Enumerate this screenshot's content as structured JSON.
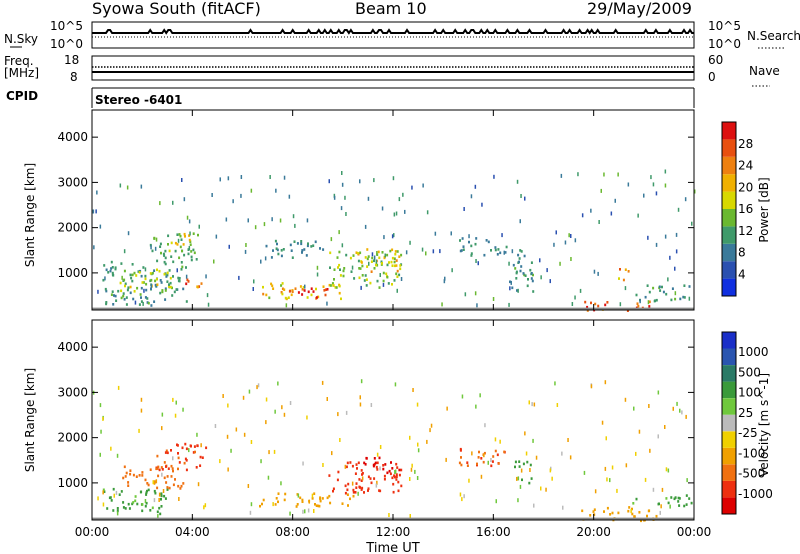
{
  "header": {
    "title": "Syowa South (fitACF)",
    "beam": "Beam 10",
    "date": "29/May/2009"
  },
  "top_panels": {
    "nsky_label": "N.Sky",
    "nsky_ticks": [
      "10^5",
      "10^0"
    ],
    "nsearch_label": "N.Search",
    "nsearch_ticks": [
      "10^5",
      "10^0"
    ],
    "freq_label": "Freq.",
    "freq_unit": "[MHz]",
    "freq_ticks": [
      "18",
      "8"
    ],
    "nave_label": "Nave",
    "nave_ticks": [
      "60",
      "0"
    ],
    "cpid_label": "CPID",
    "cpid_value": "Stereo  -6401"
  },
  "colors": {
    "power_scale": [
      "#1030e0",
      "#2a50b0",
      "#3a7a9a",
      "#3f9a6a",
      "#6ab830",
      "#d8d800",
      "#f0b000",
      "#ee8010",
      "#e85010",
      "#dd1010"
    ],
    "velocity_scale": [
      "#1a2fc8",
      "#2a55b0",
      "#2a7a66",
      "#3a9a3a",
      "#6fc83c",
      "#bbbbbb",
      "#f0d000",
      "#f0a000",
      "#f07010",
      "#ee3010",
      "#dd0000"
    ],
    "ground_scatter": "#888888"
  },
  "chart_data": [
    {
      "type": "heatmap",
      "title": "",
      "xlabel": "",
      "ylabel": "Slant Range [km]",
      "x_ticks": [
        "00:00",
        "04:00",
        "08:00",
        "12:00",
        "16:00",
        "20:00",
        "00:00"
      ],
      "y_ticks": [
        "1000",
        "2000",
        "3000",
        "4000"
      ],
      "ylim": [
        180,
        4600
      ],
      "xlim_hours": [
        0,
        24
      ],
      "colorbar_label": "Power [dB]",
      "colorbar_ticks": [
        "4",
        "8",
        "12",
        "16",
        "20",
        "24",
        "28"
      ],
      "clim": [
        0,
        30
      ],
      "regions": [
        {
          "t0": 0.4,
          "t1": 3.8,
          "r0": 300,
          "r1": 1300,
          "value": 10
        },
        {
          "t0": 1.0,
          "t1": 3.2,
          "r0": 600,
          "r1": 1100,
          "value": 15
        },
        {
          "t0": 2.3,
          "t1": 4.2,
          "r0": 1300,
          "r1": 1900,
          "value": 12
        },
        {
          "t0": 3.0,
          "t1": 4.0,
          "r0": 1500,
          "r1": 1900,
          "value": 17
        },
        {
          "t0": 3.6,
          "t1": 4.4,
          "r0": 700,
          "r1": 1000,
          "value": 22
        },
        {
          "t0": 6.7,
          "t1": 10.0,
          "r0": 450,
          "r1": 800,
          "value": 19
        },
        {
          "t0": 7.8,
          "t1": 9.4,
          "r0": 400,
          "r1": 700,
          "value": 27
        },
        {
          "t0": 9.4,
          "t1": 12.3,
          "r0": 700,
          "r1": 1500,
          "value": 14
        },
        {
          "t0": 10.5,
          "t1": 12.3,
          "r0": 1050,
          "r1": 1550,
          "value": 18
        },
        {
          "t0": 6.8,
          "t1": 9.2,
          "r0": 1350,
          "r1": 1750,
          "value": 8
        },
        {
          "t0": 14.6,
          "t1": 16.5,
          "r0": 1400,
          "r1": 1800,
          "value": 9
        },
        {
          "t0": 16.6,
          "t1": 17.6,
          "r0": 600,
          "r1": 1600,
          "value": 10
        },
        {
          "t0": 19.6,
          "t1": 22.2,
          "r0": 180,
          "r1": 400,
          "value": 25
        },
        {
          "t0": 20.9,
          "t1": 21.4,
          "r0": 850,
          "r1": 1150,
          "value": 22
        },
        {
          "t0": 21.6,
          "t1": 23.8,
          "r0": 400,
          "r1": 750,
          "value": 10
        }
      ]
    },
    {
      "type": "heatmap",
      "title": "",
      "xlabel": "Time UT",
      "ylabel": "Slant Range [km]",
      "x_ticks": [
        "00:00",
        "04:00",
        "08:00",
        "12:00",
        "16:00",
        "20:00",
        "00:00"
      ],
      "y_ticks": [
        "1000",
        "2000",
        "3000",
        "4000"
      ],
      "ylim": [
        180,
        4600
      ],
      "xlim_hours": [
        0,
        24
      ],
      "colorbar_label": "Velocity [m s^-1]",
      "colorbar_ticks": [
        "1000",
        "500",
        "100",
        "25",
        "-25",
        "-100",
        "-500",
        "-1000"
      ],
      "clim": [
        -1200,
        1200
      ],
      "regions": [
        {
          "t0": 0.4,
          "t1": 3.0,
          "r0": 300,
          "r1": 900,
          "value": 120
        },
        {
          "t0": 1.2,
          "t1": 3.8,
          "r0": 900,
          "r1": 1400,
          "value": -150
        },
        {
          "t0": 2.5,
          "t1": 4.6,
          "r0": 1300,
          "r1": 1900,
          "value": -300
        },
        {
          "t0": 6.6,
          "t1": 10.4,
          "r0": 500,
          "r1": 800,
          "value": -80
        },
        {
          "t0": 9.4,
          "t1": 12.4,
          "r0": 800,
          "r1": 1500,
          "value": -350
        },
        {
          "t0": 10.8,
          "t1": 12.3,
          "r0": 1250,
          "r1": 1600,
          "value": -700
        },
        {
          "t0": 14.6,
          "t1": 16.6,
          "r0": 1400,
          "r1": 1800,
          "value": -250
        },
        {
          "t0": 16.8,
          "t1": 17.5,
          "r0": 1000,
          "r1": 1500,
          "value": 150
        },
        {
          "t0": 19.5,
          "t1": 22.5,
          "r0": 180,
          "r1": 500,
          "value": -60
        },
        {
          "t0": 21.5,
          "t1": 23.9,
          "r0": 500,
          "r1": 750,
          "value": 120
        }
      ]
    }
  ],
  "ground_line_km": 210
}
